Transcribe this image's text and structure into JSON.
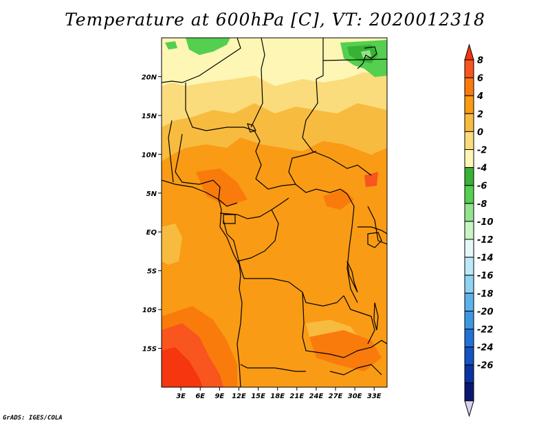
{
  "title": "Temperature at 600hPa [C], VT: 2020012318",
  "footer": "GrADS: IGES/COLA",
  "map": {
    "variable": "Temperature at 600hPa",
    "units": "C",
    "valid_time": "2020012318",
    "lon_range": [
      0,
      35
    ],
    "lat_range": [
      -20,
      25
    ],
    "lat_ticks": [
      {
        "value": 20,
        "label": "20N"
      },
      {
        "value": 15,
        "label": "15N"
      },
      {
        "value": 10,
        "label": "10N"
      },
      {
        "value": 5,
        "label": "5N"
      },
      {
        "value": 0,
        "label": "EQ"
      },
      {
        "value": -5,
        "label": "5S"
      },
      {
        "value": -10,
        "label": "10S"
      },
      {
        "value": -15,
        "label": "15S"
      }
    ],
    "lon_ticks": [
      {
        "value": 3,
        "label": "3E"
      },
      {
        "value": 6,
        "label": "6E"
      },
      {
        "value": 9,
        "label": "9E"
      },
      {
        "value": 12,
        "label": "12E"
      },
      {
        "value": 15,
        "label": "15E"
      },
      {
        "value": 18,
        "label": "18E"
      },
      {
        "value": 21,
        "label": "21E"
      },
      {
        "value": 24,
        "label": "24E"
      },
      {
        "value": 27,
        "label": "27E"
      },
      {
        "value": 30,
        "label": "30E"
      },
      {
        "value": 33,
        "label": "33E"
      }
    ]
  },
  "colorbar": {
    "colors": [
      "#f5360f",
      "#f8551f",
      "#f97b0c",
      "#f99b14",
      "#f7bb3f",
      "#fadc7c",
      "#fdf6b4",
      "#37b234",
      "#54cf4f",
      "#94e28e",
      "#c8f5c5",
      "#e3f8f7",
      "#bde9f7",
      "#8fd2f1",
      "#5eb2ea",
      "#3c97e2",
      "#2272d6",
      "#1552c2",
      "#0a34a2",
      "#0b1770",
      "#d7d2f0"
    ],
    "labels": [
      "8",
      "6",
      "4",
      "2",
      "0",
      "-2",
      "-4",
      "-6",
      "-8",
      "-10",
      "-12",
      "-14",
      "-16",
      "-18",
      "-20",
      "-22",
      "-24",
      "-26"
    ]
  },
  "fields": {
    "desert": "#fdf6b4",
    "cool": "#fadc7c",
    "mild": "#f7bb3f",
    "warm": "#f99b14",
    "hot": "#f97b0c",
    "hotter": "#f8551f",
    "hottest": "#f5360f",
    "green_dark": "#37b234",
    "green_light": "#54cf4f"
  }
}
